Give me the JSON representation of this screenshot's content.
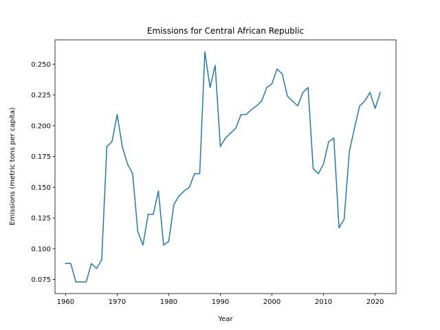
{
  "chart_data": {
    "type": "line",
    "title": "Emissions for Central African Republic",
    "xlabel": "Year",
    "ylabel": "Emissions (metric tons per capita)",
    "xlim": [
      1957.95,
      2024.05
    ],
    "ylim": [
      0.0636,
      0.2697
    ],
    "x_ticks": [
      1960,
      1970,
      1980,
      1990,
      2000,
      2010,
      2020
    ],
    "y_ticks": [
      0.075,
      0.1,
      0.125,
      0.15,
      0.175,
      0.2,
      0.225,
      0.25
    ],
    "y_tick_labels": [
      "0.075",
      "0.100",
      "0.125",
      "0.150",
      "0.175",
      "0.200",
      "0.225",
      "0.250"
    ],
    "grid": false,
    "line_color": "#1f77b4",
    "series": [
      {
        "x": [
          1960,
          1961,
          1962,
          1963,
          1964,
          1965,
          1966,
          1967,
          1968,
          1969,
          1970,
          1971,
          1972,
          1973,
          1974,
          1975,
          1976,
          1977,
          1978,
          1979,
          1980,
          1981,
          1982,
          1983,
          1984,
          1985,
          1986,
          1987,
          1988,
          1989,
          1990,
          1991,
          1992,
          1993,
          1994,
          1995,
          1996,
          1997,
          1998,
          1999,
          2000,
          2001,
          2002,
          2003,
          2004,
          2005,
          2006,
          2007,
          2008,
          2009,
          2010,
          2011,
          2012,
          2013,
          2014,
          2015,
          2016,
          2017,
          2018,
          2019,
          2020,
          2021
        ],
        "values": [
          0.088,
          0.088,
          0.073,
          0.073,
          0.073,
          0.088,
          0.084,
          0.091,
          0.183,
          0.187,
          0.209,
          0.183,
          0.169,
          0.161,
          0.114,
          0.103,
          0.128,
          0.128,
          0.147,
          0.103,
          0.106,
          0.136,
          0.143,
          0.147,
          0.15,
          0.161,
          0.161,
          0.26,
          0.231,
          0.249,
          0.183,
          0.19,
          0.194,
          0.198,
          0.209,
          0.209,
          0.213,
          0.216,
          0.22,
          0.231,
          0.234,
          0.246,
          0.242,
          0.224,
          0.22,
          0.216,
          0.227,
          0.231,
          0.165,
          0.161,
          0.169,
          0.187,
          0.19,
          0.117,
          0.124,
          0.179,
          0.198,
          0.216,
          0.22,
          0.227,
          0.214,
          0.227
        ]
      }
    ]
  }
}
